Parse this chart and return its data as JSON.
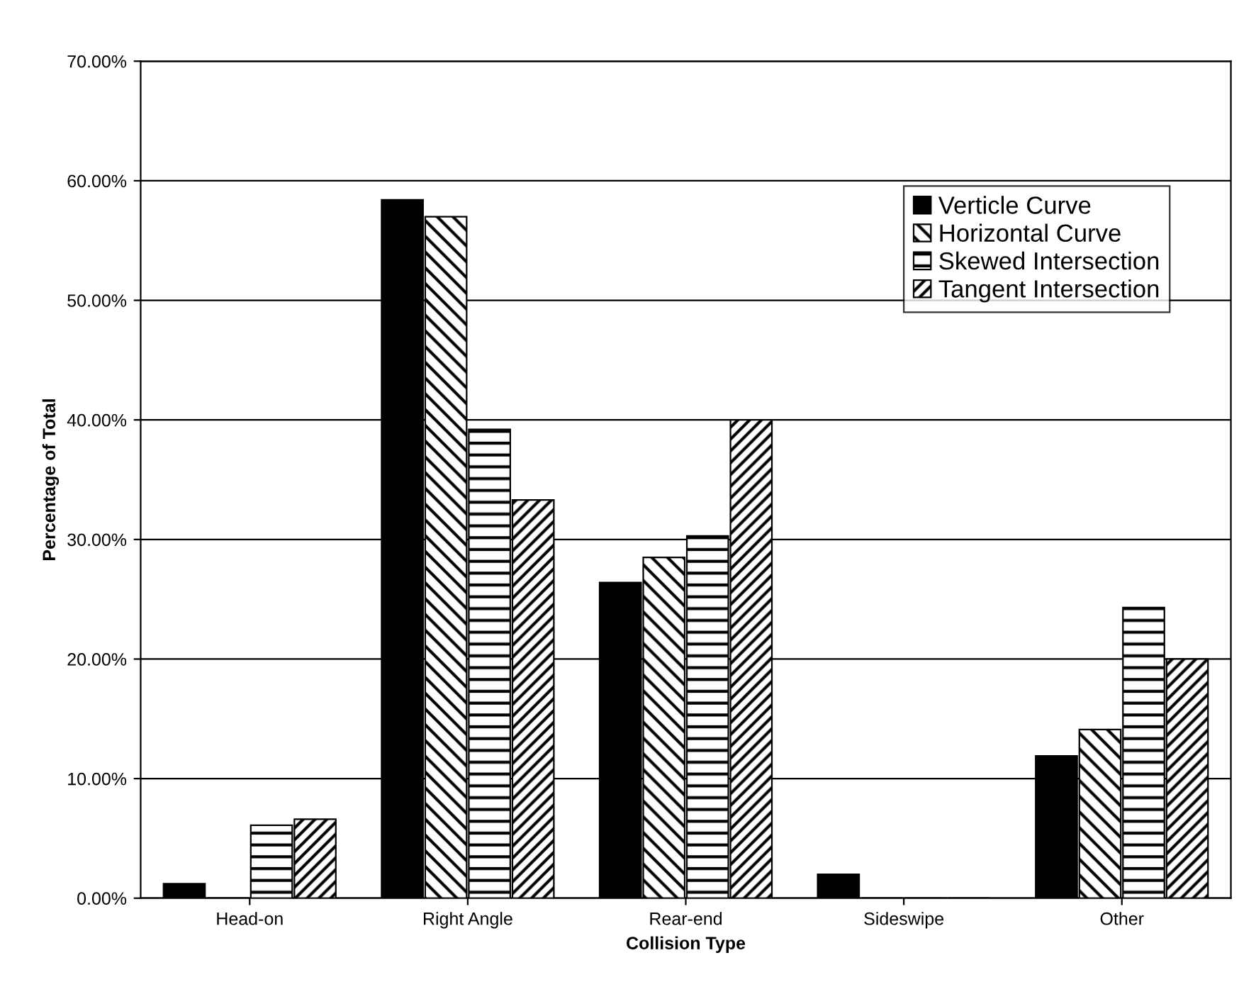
{
  "chart_data": {
    "type": "bar",
    "xlabel": "Collision Type",
    "ylabel": "Percentage of Total",
    "categories": [
      "Head-on",
      "Right Angle",
      "Rear-end",
      "Sideswipe",
      "Other"
    ],
    "series": [
      {
        "name": "Verticle Curve",
        "color": "#000000",
        "values": [
          1.2,
          58.4,
          26.4,
          2.0,
          11.9
        ]
      },
      {
        "name": "Horizontal Curve",
        "color": "#000000",
        "values": [
          0,
          57.0,
          28.5,
          0,
          14.1
        ]
      },
      {
        "name": "Skewed Intersection",
        "color": "#000000",
        "values": [
          6.1,
          39.2,
          30.3,
          0,
          24.3
        ]
      },
      {
        "name": "Tangent Intersection",
        "color": "#000000",
        "values": [
          6.6,
          33.3,
          40.0,
          0,
          20.0
        ]
      }
    ],
    "ylim": [
      0,
      70
    ],
    "yticks": [
      {
        "value": 0,
        "label": "0.00%"
      },
      {
        "value": 10,
        "label": "10.00%"
      },
      {
        "value": 20,
        "label": "20.00%"
      },
      {
        "value": 30,
        "label": "30.00%"
      },
      {
        "value": 40,
        "label": "40.00%"
      },
      {
        "value": 50,
        "label": "50.00%"
      },
      {
        "value": 60,
        "label": "60.00%"
      },
      {
        "value": 70,
        "label": "70.00%"
      }
    ],
    "grid": "y",
    "legend": "top right"
  }
}
